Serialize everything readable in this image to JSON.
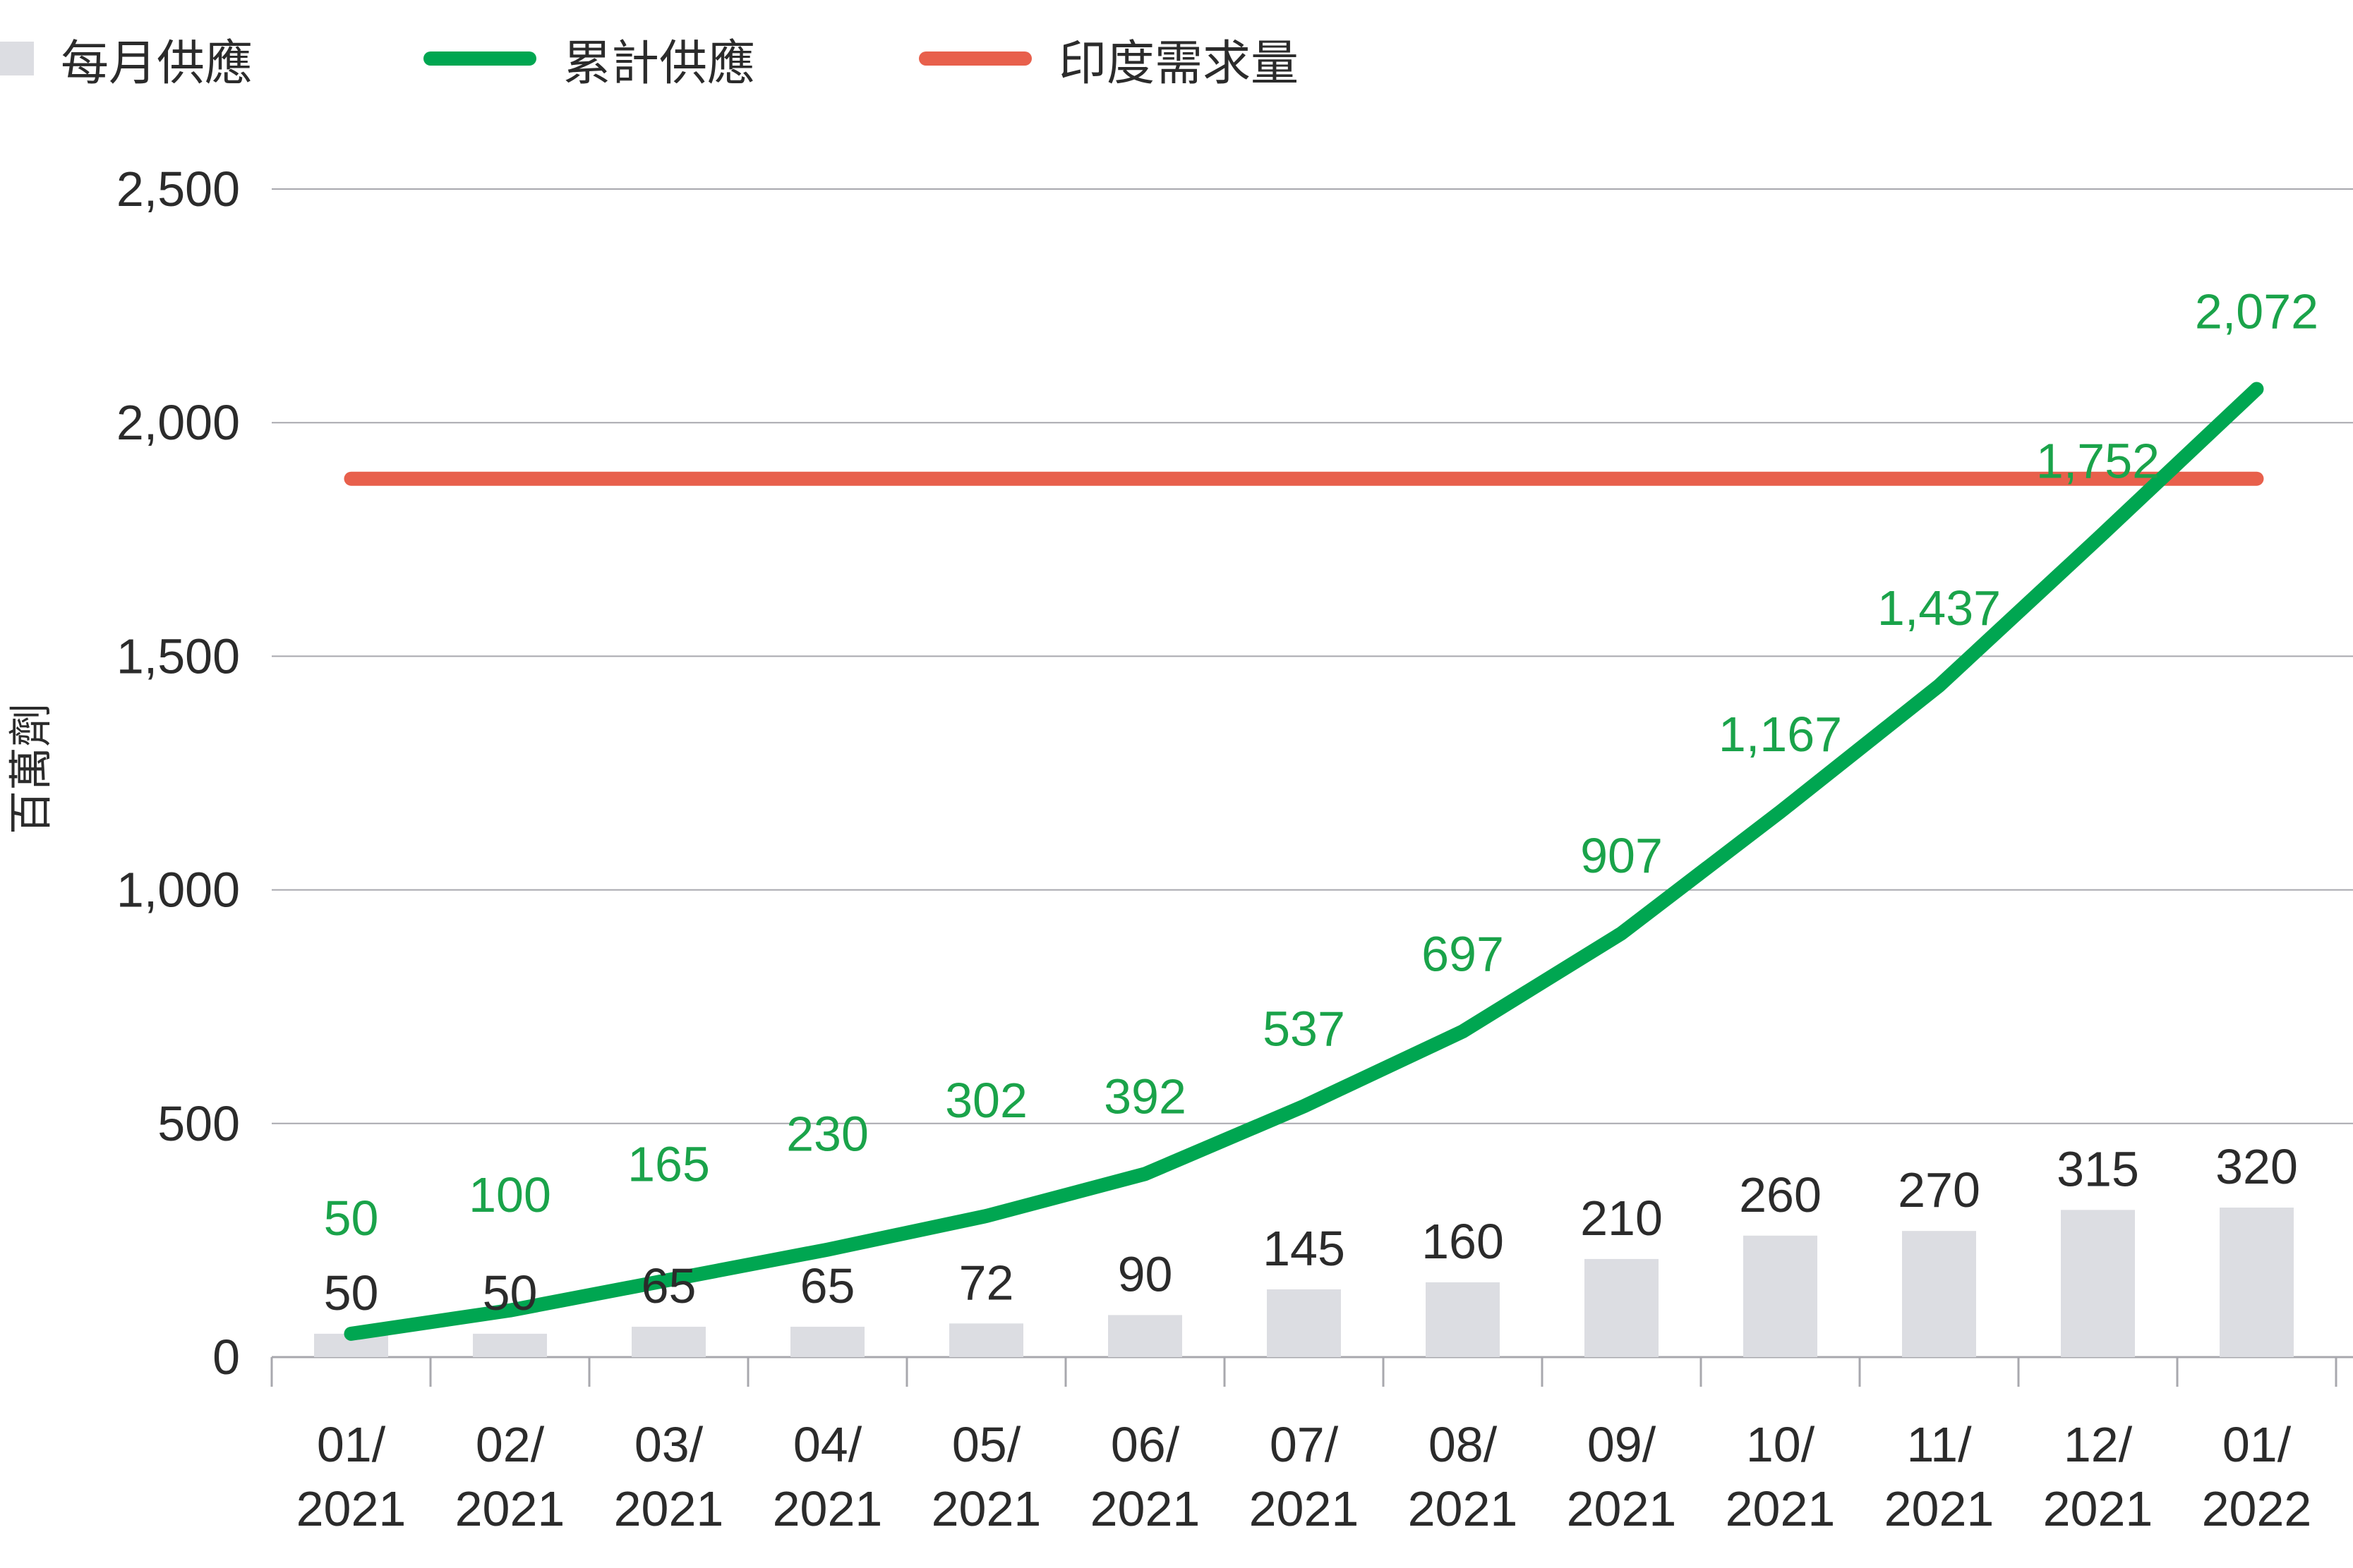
{
  "legend": {
    "monthly_label": "每月供應",
    "cumulative_label": "累計供應",
    "demand_label": "印度需求量"
  },
  "colors": {
    "bar": "#dcdde2",
    "cumulative": "#00a651",
    "demand": "#e8604c",
    "cumulative_label": "#1aa34a",
    "text": "#2b2b2b",
    "grid": "#a8a8ae"
  },
  "chart_data": {
    "type": "bar",
    "title": "",
    "xlabel": "",
    "ylabel": "百萬劑",
    "ylim": [
      0,
      2500
    ],
    "yticks": [
      "0",
      "500",
      "1,000",
      "1,500",
      "2,000",
      "2,500"
    ],
    "ytick_values": [
      0,
      500,
      1000,
      1500,
      2000,
      2500
    ],
    "grid": true,
    "legend_position": "top-left",
    "categories": [
      [
        "01/",
        "2021"
      ],
      [
        "02/",
        "2021"
      ],
      [
        "03/",
        "2021"
      ],
      [
        "04/",
        "2021"
      ],
      [
        "05/",
        "2021"
      ],
      [
        "06/",
        "2021"
      ],
      [
        "07/",
        "2021"
      ],
      [
        "08/",
        "2021"
      ],
      [
        "09/",
        "2021"
      ],
      [
        "10/",
        "2021"
      ],
      [
        "11/",
        "2021"
      ],
      [
        "12/",
        "2021"
      ],
      [
        "01/",
        "2022"
      ]
    ],
    "series": [
      {
        "name": "每月供應",
        "type": "bar",
        "values": [
          50,
          50,
          65,
          65,
          72,
          90,
          145,
          160,
          210,
          260,
          270,
          315,
          320
        ],
        "labels": [
          "50",
          "50",
          "65",
          "65",
          "72",
          "90",
          "145",
          "160",
          "210",
          "260",
          "270",
          "315",
          "320"
        ]
      },
      {
        "name": "累計供應",
        "type": "line",
        "values": [
          50,
          100,
          165,
          230,
          302,
          392,
          537,
          697,
          907,
          1167,
          1437,
          1752,
          2072
        ],
        "labels": [
          "50",
          "100",
          "165",
          "230",
          "302",
          "392",
          "537",
          "697",
          "907",
          "1,167",
          "1,437",
          "1,752",
          "2,072"
        ]
      },
      {
        "name": "印度需求量",
        "type": "line",
        "values": [
          1880,
          1880,
          1880,
          1880,
          1880,
          1880,
          1880,
          1880,
          1880,
          1880,
          1880,
          1880,
          1880
        ]
      }
    ]
  }
}
